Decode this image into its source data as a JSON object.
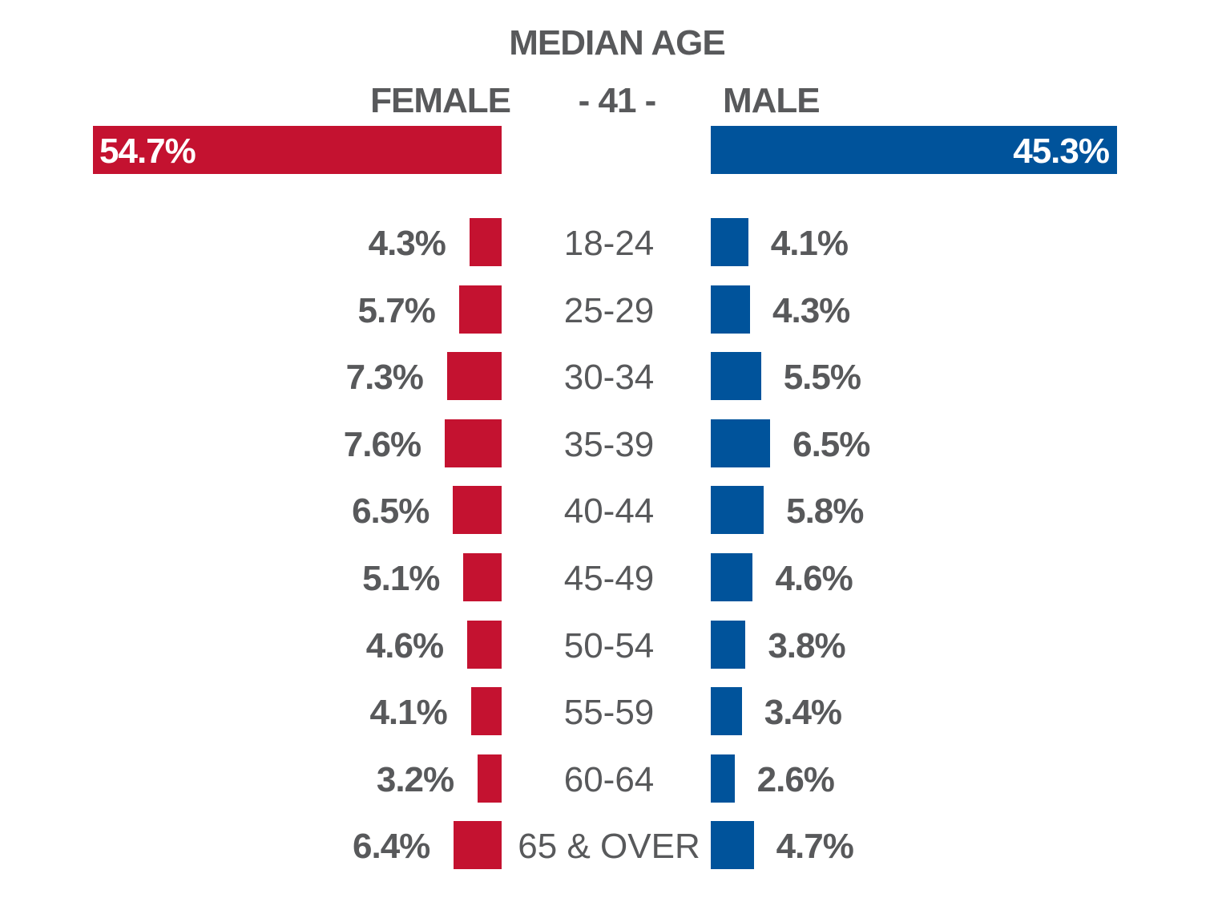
{
  "chart_data": {
    "type": "bar",
    "title": "MEDIAN AGE",
    "median_age": "- 41 -",
    "female_label": "FEMALE",
    "male_label": "MALE",
    "totals": {
      "female": 54.7,
      "male": 45.3,
      "female_text": "54.7%",
      "male_text": "45.3%"
    },
    "categories": [
      "18-24",
      "25-29",
      "30-34",
      "35-39",
      "40-44",
      "45-49",
      "50-54",
      "55-59",
      "60-64",
      "65 & OVER"
    ],
    "series": [
      {
        "name": "FEMALE",
        "color": "#c41230",
        "values": [
          4.3,
          5.7,
          7.3,
          7.6,
          6.5,
          5.1,
          4.6,
          4.1,
          3.2,
          6.4
        ]
      },
      {
        "name": "MALE",
        "color": "#00539b",
        "values": [
          4.1,
          4.3,
          5.5,
          6.5,
          5.8,
          4.6,
          3.8,
          3.4,
          2.6,
          4.7
        ]
      }
    ],
    "text_color": "#58595b"
  }
}
